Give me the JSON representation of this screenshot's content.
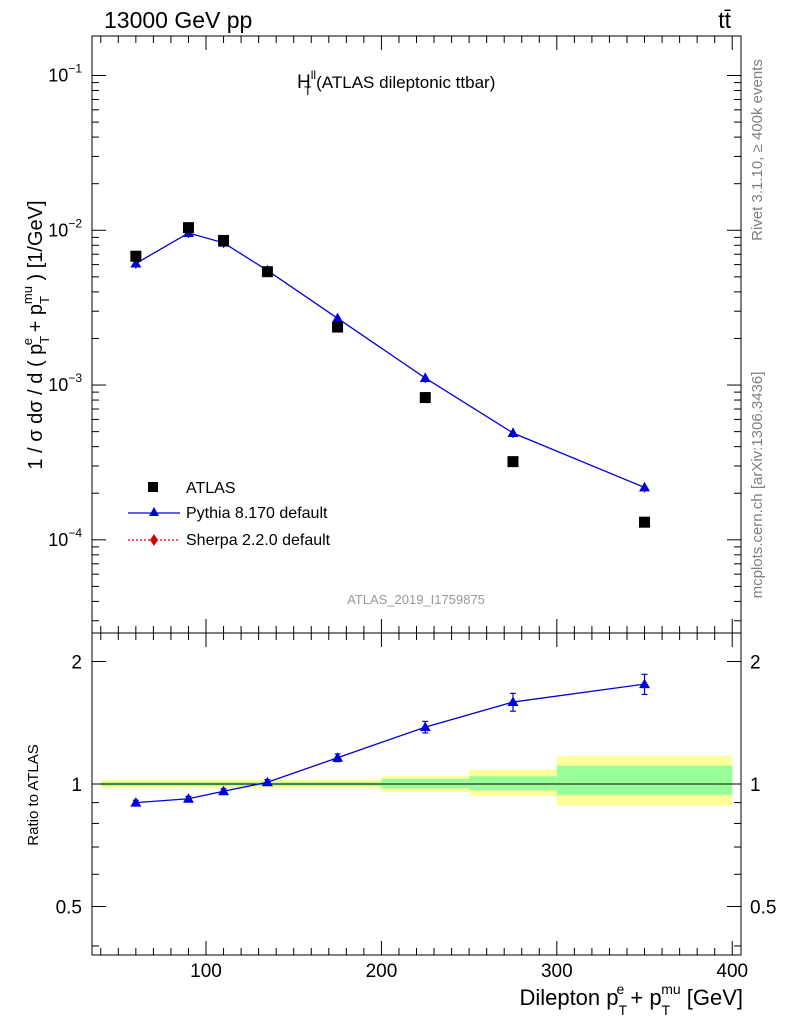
{
  "header": {
    "left": "13000 GeV pp",
    "right": "tt̄"
  },
  "side": {
    "rivet": "Rivet 3.1.10, ≥ 400k events",
    "mcplots": "mcplots.cern.ch [arXiv:1306.3436]"
  },
  "chart_data": [
    {
      "type": "scatter",
      "title_main": "H",
      "title_sup": "ll",
      "title_sub": "T",
      "title_rest": " (ATLAS dileptonic ttbar)",
      "watermark": "ATLAS_2019_I1759875",
      "ylabel": "1 / σ dσ / d ( p_T^e + p_T^mu ) [1/GeV]",
      "yscale": "log",
      "ylim": [
        2.5e-05,
        0.18
      ],
      "xlim": [
        35,
        405
      ],
      "y_ticklabels": [
        {
          "value": 0.1,
          "base": "10",
          "exp": "−1"
        },
        {
          "value": 0.01,
          "base": "10",
          "exp": "−2"
        },
        {
          "value": 0.001,
          "base": "10",
          "exp": "−3"
        },
        {
          "value": 0.0001,
          "base": "10",
          "exp": "−4"
        }
      ],
      "legend": {
        "position": "lower-left",
        "entries": [
          {
            "label": "ATLAS",
            "marker": "square",
            "color": "#000000"
          },
          {
            "label": "Pythia 8.170 default",
            "marker": "triangle",
            "color": "#0000dd"
          },
          {
            "label": "Sherpa 2.2.0 default",
            "marker": "diamond",
            "color": "#dd0000"
          }
        ]
      },
      "series": [
        {
          "name": "ATLAS",
          "color": "#000000",
          "points": [
            {
              "x": 60,
              "y": 0.0068
            },
            {
              "x": 90,
              "y": 0.0104
            },
            {
              "x": 110,
              "y": 0.0086
            },
            {
              "x": 135,
              "y": 0.0054
            },
            {
              "x": 175,
              "y": 0.00237
            },
            {
              "x": 225,
              "y": 0.00083
            },
            {
              "x": 275,
              "y": 0.00032
            },
            {
              "x": 350,
              "y": 0.00013
            }
          ]
        },
        {
          "name": "Pythia 8.170 default",
          "color": "#0000dd",
          "points": [
            {
              "x": 60,
              "y": 0.0061
            },
            {
              "x": 90,
              "y": 0.0096
            },
            {
              "x": 110,
              "y": 0.0083
            },
            {
              "x": 135,
              "y": 0.0055
            },
            {
              "x": 175,
              "y": 0.0027
            },
            {
              "x": 225,
              "y": 0.00111
            },
            {
              "x": 275,
              "y": 0.00049
            },
            {
              "x": 350,
              "y": 0.000218
            }
          ]
        }
      ]
    },
    {
      "type": "scatter",
      "ylabel": "Ratio to ATLAS",
      "xlabel": "Dilepton p_T^e + p_T^mu [GeV]",
      "yscale": "log",
      "ylim": [
        0.38,
        2.35
      ],
      "xlim": [
        35,
        405
      ],
      "x_ticks": [
        100,
        200,
        300,
        400
      ],
      "y_ticks": [
        0.5,
        1,
        2
      ],
      "bands": [
        {
          "x0": 40,
          "x1": 200,
          "yellow": [
            0.975,
            1.025
          ],
          "green": [
            0.99,
            1.01
          ]
        },
        {
          "x0": 200,
          "x1": 250,
          "yellow": [
            0.955,
            1.045
          ],
          "green": [
            0.975,
            1.03
          ]
        },
        {
          "x0": 250,
          "x1": 300,
          "yellow": [
            0.935,
            1.085
          ],
          "green": [
            0.965,
            1.045
          ]
        },
        {
          "x0": 300,
          "x1": 400,
          "yellow": [
            0.885,
            1.17
          ],
          "green": [
            0.94,
            1.11
          ]
        }
      ],
      "series": [
        {
          "name": "Pythia 8.170 default",
          "color": "#0000dd",
          "points": [
            {
              "x": 60,
              "y": 0.9,
              "err": 0.012
            },
            {
              "x": 90,
              "y": 0.92,
              "err": 0.012
            },
            {
              "x": 110,
              "y": 0.96,
              "err": 0.013
            },
            {
              "x": 135,
              "y": 1.01,
              "err": 0.015
            },
            {
              "x": 175,
              "y": 1.16,
              "err": 0.025
            },
            {
              "x": 225,
              "y": 1.38,
              "err": 0.045
            },
            {
              "x": 275,
              "y": 1.59,
              "err": 0.08
            },
            {
              "x": 350,
              "y": 1.76,
              "err": 0.1
            }
          ]
        }
      ]
    }
  ]
}
